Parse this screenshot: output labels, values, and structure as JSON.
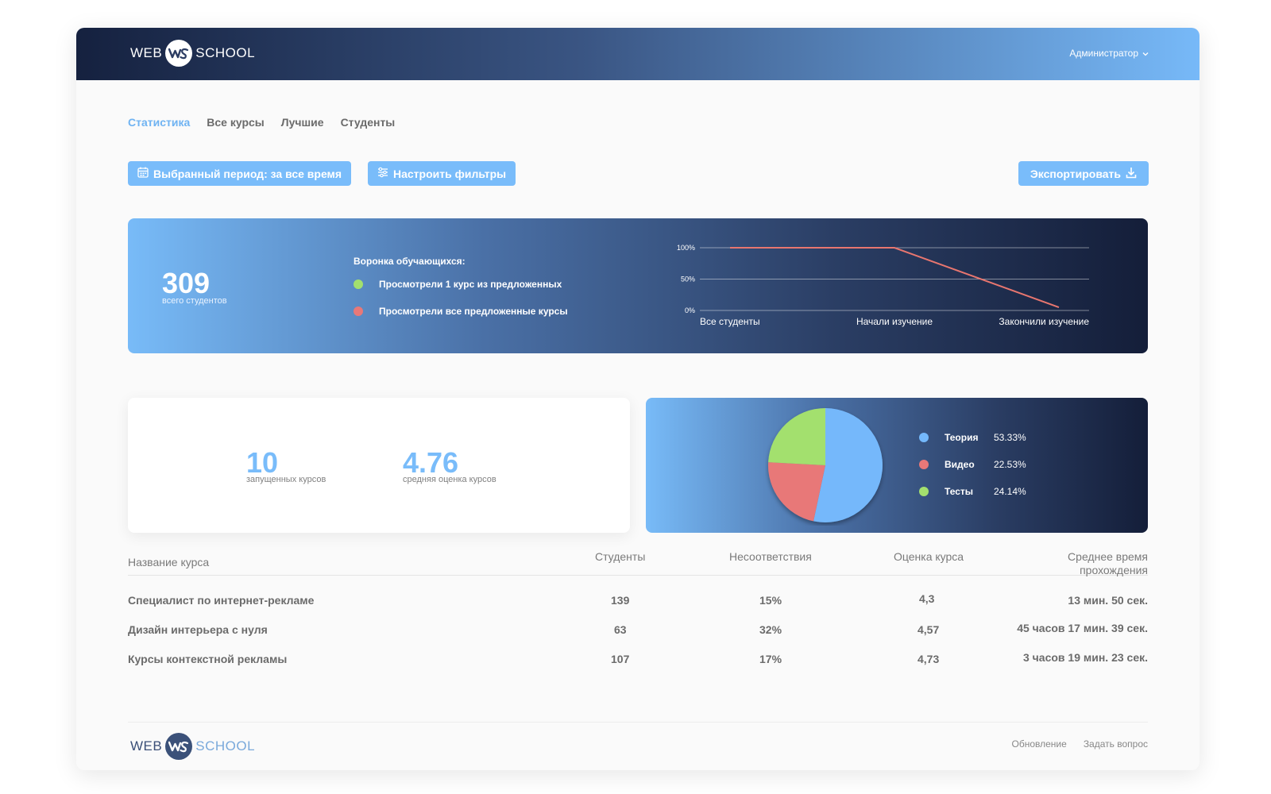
{
  "header": {
    "logo_left": "WEB",
    "logo_right": "SCHOOL",
    "user_menu": "Администратор"
  },
  "tabs": [
    {
      "label": "Статистика",
      "active": true
    },
    {
      "label": "Все курсы",
      "active": false
    },
    {
      "label": "Лучшие",
      "active": false
    },
    {
      "label": "Студенты",
      "active": false
    }
  ],
  "toolbar": {
    "period_label": "Выбранный период: за все время",
    "filters_label": "Настроить фильтры",
    "export_label": "Экспортировать"
  },
  "funnel": {
    "total_value": "309",
    "total_caption": "всего студентов",
    "title": "Воронка обучающихся:",
    "legend": [
      {
        "label": "Просмотрели 1 курс из предложенных",
        "color": "#a3e06e"
      },
      {
        "label": "Просмотрели все предложенные курсы",
        "color": "#e87878"
      }
    ]
  },
  "summary": {
    "courses_value": "10",
    "courses_caption": "запущенных курсов",
    "rating_value": "4.76",
    "rating_caption": "средняя оценка курсов"
  },
  "content_split": {
    "legend": [
      {
        "name": "Теория",
        "pct": "53.33%",
        "color": "#74b8fb"
      },
      {
        "name": "Видео",
        "pct": "22.53%",
        "color": "#e87878"
      },
      {
        "name": "Тесты",
        "pct": "24.14%",
        "color": "#a3e06e"
      }
    ]
  },
  "table": {
    "headers": {
      "name": "Название курса",
      "students": "Студенты",
      "mismatch": "Несоответствия",
      "rating": "Оценка курса",
      "avg_time_1": "Среднее время",
      "avg_time_2": "прохождения"
    },
    "rows": [
      {
        "name": "Специалист по интернет-рекламе",
        "students": "139",
        "mismatch": "15%",
        "rating": "4,3",
        "avg_time": "13 мин. 50 сек."
      },
      {
        "name": "Дизайн интерьера с нуля",
        "students": "63",
        "mismatch": "32%",
        "rating": "4,57",
        "avg_time": "45 часов 17 мин. 39 сек."
      },
      {
        "name": "Курсы контекстной рекламы",
        "students": "107",
        "mismatch": "17%",
        "rating": "4,73",
        "avg_time": "3 часов 19 мин. 23 сек."
      }
    ]
  },
  "footer": {
    "logo_left": "WEB",
    "logo_right": "SCHOOL",
    "links": [
      "Обновление",
      "Задать вопрос"
    ]
  },
  "colors": {
    "accent": "#79bcfa",
    "green": "#a3e06e",
    "red": "#e87878",
    "funnel_line": "#e8766f"
  },
  "chart_data": [
    {
      "type": "line",
      "categories": [
        "Все студенты",
        "Начали изучение",
        "Закончили изучение"
      ],
      "y_ticks": [
        "100%",
        "50%",
        "0%"
      ],
      "ylim": [
        0,
        100
      ],
      "series": [
        {
          "values": [
            100,
            100,
            5
          ]
        }
      ],
      "grid": true
    },
    {
      "type": "pie",
      "labels": [
        "Теория",
        "Видео",
        "Тесты"
      ],
      "values": [
        53.33,
        22.53,
        24.14
      ],
      "legend": "right"
    }
  ]
}
